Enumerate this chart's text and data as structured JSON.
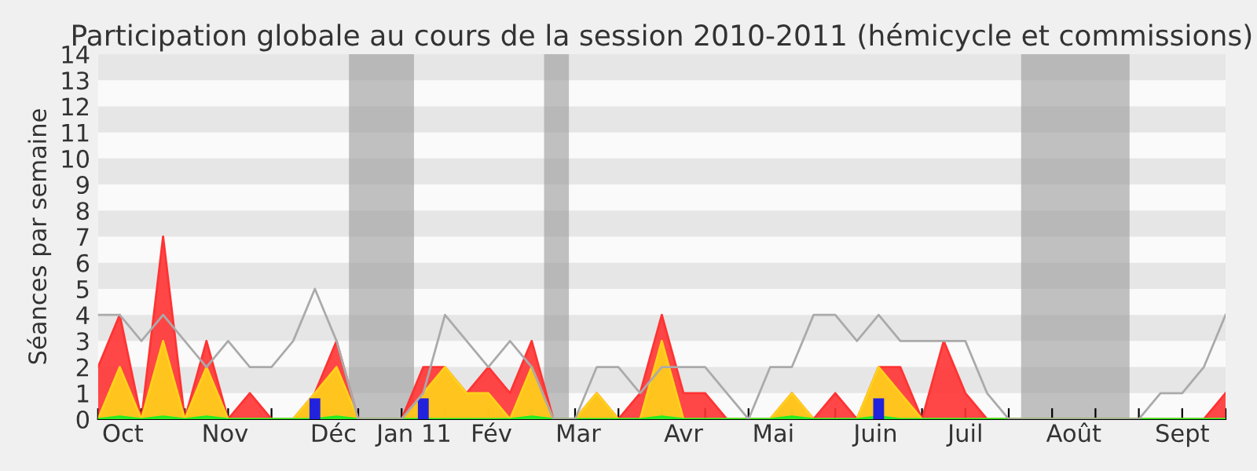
{
  "chart_data": {
    "type": "area",
    "title": "Participation globale au cours de la session 2010-2011 (hémicycle et commissions)",
    "ylabel": "Séances par semaine",
    "x": [
      "2010-09-27",
      "2010-10-04",
      "2010-10-11",
      "2010-10-18",
      "2010-10-25",
      "2010-11-01",
      "2010-11-08",
      "2010-11-15",
      "2010-11-22",
      "2010-11-29",
      "2010-12-06",
      "2010-12-13",
      "2010-12-20",
      "2010-12-27",
      "2011-01-03",
      "2011-01-10",
      "2011-01-17",
      "2011-01-24",
      "2011-01-31",
      "2011-02-07",
      "2011-02-14",
      "2011-02-21",
      "2011-02-28",
      "2011-03-07",
      "2011-03-14",
      "2011-03-21",
      "2011-03-28",
      "2011-04-04",
      "2011-04-11",
      "2011-04-18",
      "2011-04-25",
      "2011-05-02",
      "2011-05-09",
      "2011-05-16",
      "2011-05-23",
      "2011-05-30",
      "2011-06-06",
      "2011-06-13",
      "2011-06-20",
      "2011-06-27",
      "2011-07-04",
      "2011-07-11",
      "2011-07-18",
      "2011-07-25",
      "2011-08-01",
      "2011-08-08",
      "2011-08-15",
      "2011-08-22",
      "2011-08-29",
      "2011-09-05",
      "2011-09-12",
      "2011-09-19",
      "2011-09-26"
    ],
    "series": [
      {
        "color": "#ff3333",
        "values": [
          2,
          4,
          0,
          7,
          0,
          3,
          0,
          1,
          0,
          0,
          1,
          3,
          0,
          0,
          0,
          2,
          2,
          1,
          2,
          1,
          3,
          0,
          0,
          1,
          0,
          1,
          4,
          1,
          1,
          0,
          0,
          0,
          1,
          0,
          1,
          0,
          2,
          2,
          0,
          3,
          1,
          0,
          0,
          0,
          0,
          0,
          0,
          0,
          0,
          0,
          0,
          0,
          1
        ]
      },
      {
        "color": "#ffd21a",
        "values": [
          0,
          2,
          0,
          3,
          0,
          2,
          0,
          0,
          0,
          0,
          1,
          2,
          0,
          0,
          0,
          1,
          2,
          1,
          1,
          0,
          2,
          0,
          0,
          1,
          0,
          0,
          3,
          0,
          0,
          0,
          0,
          0,
          1,
          0,
          0,
          0,
          2,
          1,
          0,
          0,
          0,
          0,
          0,
          0,
          0,
          0,
          0,
          0,
          0,
          0,
          0,
          0,
          0
        ]
      },
      {
        "color": "#22ee22",
        "values": [
          0,
          0.1,
          0,
          0.1,
          0,
          0.1,
          0,
          0,
          0,
          0,
          0,
          0.1,
          0,
          0,
          0,
          0,
          0,
          0,
          0,
          0,
          0.1,
          0,
          0,
          0,
          0,
          0,
          0.1,
          0,
          0,
          0,
          0,
          0,
          0.1,
          0,
          0,
          0,
          0.1,
          0,
          0,
          0,
          0,
          0,
          0,
          0,
          0,
          0,
          0,
          0,
          0,
          0,
          0,
          0,
          0
        ]
      },
      {
        "type": "bar",
        "color": "#2222dd",
        "values": [
          null,
          null,
          null,
          null,
          null,
          null,
          null,
          null,
          null,
          null,
          0.8,
          null,
          null,
          null,
          null,
          0.8,
          null,
          null,
          null,
          null,
          null,
          null,
          null,
          null,
          null,
          null,
          null,
          null,
          null,
          null,
          null,
          null,
          null,
          null,
          null,
          null,
          0.8,
          null,
          null,
          null,
          null,
          null,
          null,
          null,
          null,
          null,
          null,
          null,
          null,
          null,
          null,
          null,
          null
        ]
      },
      {
        "type": "line",
        "color": "#aaaaaa",
        "values": [
          4,
          4,
          3,
          4,
          3,
          2,
          3,
          2,
          2,
          3,
          5,
          3,
          0,
          0,
          0,
          1,
          4,
          3,
          2,
          3,
          2,
          0,
          0,
          2,
          2,
          1,
          2,
          2,
          2,
          1,
          0,
          2,
          2,
          4,
          4,
          3,
          4,
          3,
          3,
          3,
          3,
          1,
          0,
          0,
          0,
          0,
          0,
          0,
          0,
          1,
          1,
          2,
          4
        ]
      }
    ],
    "xlim": [
      "2010-09-27",
      "2011-09-26"
    ],
    "xticks": [
      {
        "value": "2010-09-27",
        "label": null
      },
      {
        "value": "2010-10-11",
        "label": null
      },
      {
        "value": "2010-10-25",
        "label": null
      },
      {
        "value": "2010-11-08",
        "label": null
      },
      {
        "value": "2010-11-22",
        "label": null
      },
      {
        "value": "2010-12-06",
        "label": null
      },
      {
        "value": "2010-12-20",
        "label": null
      },
      {
        "value": "2011-01-03",
        "label": null
      },
      {
        "value": "2011-01-17",
        "label": null
      },
      {
        "value": "2011-01-31",
        "label": null
      },
      {
        "value": "2011-02-14",
        "label": null
      },
      {
        "value": "2011-02-28",
        "label": null
      },
      {
        "value": "2011-03-14",
        "label": null
      },
      {
        "value": "2011-03-28",
        "label": null
      },
      {
        "value": "2011-04-11",
        "label": null
      },
      {
        "value": "2011-04-25",
        "label": null
      },
      {
        "value": "2011-05-09",
        "label": null
      },
      {
        "value": "2011-05-23",
        "label": null
      },
      {
        "value": "2011-06-06",
        "label": null
      },
      {
        "value": "2011-06-20",
        "label": null
      },
      {
        "value": "2011-07-04",
        "label": null
      },
      {
        "value": "2011-07-18",
        "label": null
      },
      {
        "value": "2011-08-01",
        "label": null
      },
      {
        "value": "2011-08-15",
        "label": null
      },
      {
        "value": "2011-08-29",
        "label": null
      },
      {
        "value": "2011-09-12",
        "label": null
      },
      {
        "value": "2011-09-26",
        "label": null
      },
      {
        "value": "2010-10-05",
        "label": "Oct"
      },
      {
        "value": "2010-11-07",
        "label": "Nov"
      },
      {
        "value": "2010-12-12",
        "label": "Déc"
      },
      {
        "value": "2011-01-07",
        "label": "Jan 11"
      },
      {
        "value": "2011-02-01",
        "label": "Fév"
      },
      {
        "value": "2011-03-01",
        "label": "Mar"
      },
      {
        "value": "2011-04-04",
        "label": "Avr"
      },
      {
        "value": "2011-05-03",
        "label": "Mai"
      },
      {
        "value": "2011-06-05",
        "label": "Juin"
      },
      {
        "value": "2011-07-04",
        "label": "Juil"
      },
      {
        "value": "2011-08-08",
        "label": "Août"
      },
      {
        "value": "2011-09-12",
        "label": "Sept"
      }
    ],
    "ylim": [
      0,
      14
    ],
    "yticks": [
      0,
      1,
      2,
      3,
      4,
      5,
      6,
      7,
      8,
      9,
      10,
      11,
      12,
      13,
      14
    ],
    "bands": [
      {
        "axis": "x",
        "from": "2010-12-17",
        "to": "2011-01-07",
        "color": "#999999"
      },
      {
        "axis": "x",
        "from": "2011-02-18",
        "to": "2011-02-26",
        "color": "#999999"
      },
      {
        "axis": "x",
        "from": "2011-07-22",
        "to": "2011-08-26",
        "color": "#999999"
      }
    ]
  }
}
